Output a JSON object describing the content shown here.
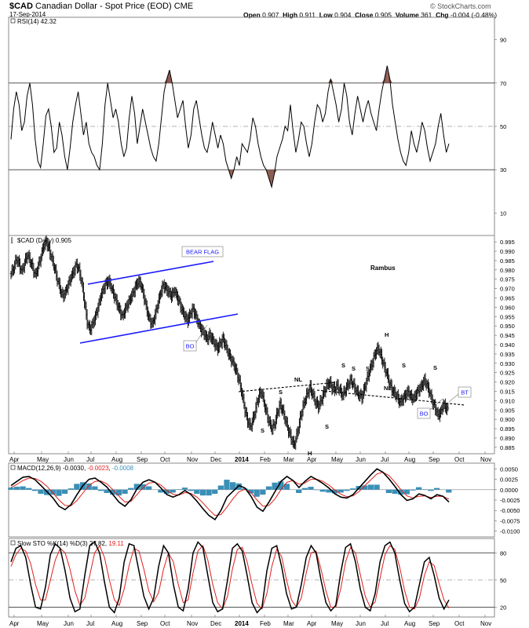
{
  "header": {
    "symbol": "$CAD",
    "name": "Canadian Dollar - Spot Price (EOD)",
    "exchange": "CME",
    "date": "17-Sep-2014",
    "open_label": "Open",
    "open": "0.907",
    "high_label": "High",
    "high": "0.911",
    "low_label": "Low",
    "low": "0.904",
    "close_label": "Close",
    "close": "0.905",
    "volume_label": "Volume",
    "volume": "361",
    "chg_label": "Chg",
    "chg": "-0.004 (-0.48%)",
    "brand": "© StockCharts.com"
  },
  "colors": {
    "price_bars": "#000000",
    "trendline": "#1a1aff",
    "neckline": "#000000",
    "macd_hist": "#3a8fb7",
    "signal_line": "#e0201b",
    "rsi_fill": "#8b5a50",
    "annotation_text": "#1a1aff"
  },
  "chart_data": [
    {
      "id": "rsi",
      "type": "line",
      "legend": "RSI(14) 42.32",
      "y_ticks": [
        10,
        30,
        50,
        70,
        90
      ],
      "ylim": [
        0,
        100
      ],
      "reference_lines": [
        30,
        50,
        70
      ],
      "series": [
        {
          "values": [
            44,
            58,
            66,
            60,
            48,
            52,
            64,
            70,
            60,
            44,
            34,
            31,
            42,
            55,
            58,
            50,
            38,
            40,
            52,
            46,
            36,
            30,
            40,
            52,
            60,
            66,
            56,
            46,
            52,
            42,
            38,
            36,
            32,
            30,
            42,
            60,
            70,
            62,
            54,
            58,
            52,
            42,
            36,
            40,
            54,
            64,
            56,
            42,
            50,
            58,
            52,
            46,
            40,
            36,
            34,
            42,
            54,
            66,
            72,
            76,
            70,
            62,
            54,
            58,
            62,
            50,
            40,
            46,
            58,
            62,
            54,
            46,
            40,
            38,
            44,
            52,
            46,
            40,
            46,
            42,
            34,
            30,
            26,
            30,
            36,
            32,
            42,
            40,
            38,
            44,
            54,
            50,
            42,
            36,
            32,
            30,
            26,
            22,
            28,
            36,
            40,
            44,
            50,
            48,
            60,
            48,
            38,
            44,
            52,
            50,
            42,
            36,
            42,
            52,
            60,
            58,
            52,
            56,
            66,
            72,
            66,
            60,
            52,
            58,
            70,
            64,
            52,
            46,
            56,
            64,
            58,
            52,
            58,
            62,
            56,
            52,
            48,
            58,
            66,
            72,
            78,
            72,
            60,
            52,
            44,
            38,
            34,
            32,
            38,
            48,
            42,
            38,
            44,
            52,
            48,
            40,
            34,
            38,
            42,
            50,
            56,
            46,
            38,
            42
          ]
        }
      ]
    },
    {
      "id": "price",
      "type": "line",
      "legend": "$CAD (Daily) 0.905",
      "y_ticks": [
        0.885,
        0.89,
        0.895,
        0.9,
        0.905,
        0.91,
        0.915,
        0.92,
        0.925,
        0.93,
        0.935,
        0.94,
        0.945,
        0.95,
        0.955,
        0.96,
        0.965,
        0.97,
        0.975,
        0.98,
        0.985,
        0.99,
        0.995
      ],
      "ylim": [
        0.882,
        0.998
      ],
      "series": [
        {
          "values": [
            0.978,
            0.981,
            0.986,
            0.983,
            0.979,
            0.984,
            0.988,
            0.985,
            0.981,
            0.977,
            0.982,
            0.987,
            0.993,
            0.995,
            0.991,
            0.986,
            0.981,
            0.975,
            0.97,
            0.966,
            0.968,
            0.972,
            0.976,
            0.979,
            0.983,
            0.98,
            0.973,
            0.963,
            0.952,
            0.948,
            0.951,
            0.955,
            0.96,
            0.966,
            0.97,
            0.973,
            0.974,
            0.97,
            0.966,
            0.962,
            0.958,
            0.955,
            0.959,
            0.962,
            0.965,
            0.968,
            0.972,
            0.974,
            0.971,
            0.965,
            0.958,
            0.953,
            0.951,
            0.956,
            0.962,
            0.968,
            0.972,
            0.97,
            0.968,
            0.966,
            0.969,
            0.966,
            0.962,
            0.958,
            0.955,
            0.953,
            0.957,
            0.959,
            0.955,
            0.951,
            0.948,
            0.946,
            0.943,
            0.945,
            0.943,
            0.94,
            0.938,
            0.941,
            0.943,
            0.939,
            0.935,
            0.932,
            0.929,
            0.925,
            0.92,
            0.913,
            0.905,
            0.899,
            0.896,
            0.9,
            0.906,
            0.912,
            0.915,
            0.909,
            0.903,
            0.898,
            0.895,
            0.898,
            0.904,
            0.908,
            0.904,
            0.899,
            0.894,
            0.89,
            0.886,
            0.891,
            0.898,
            0.905,
            0.91,
            0.914,
            0.917,
            0.913,
            0.909,
            0.907,
            0.91,
            0.914,
            0.918,
            0.92,
            0.917,
            0.916,
            0.918,
            0.915,
            0.913,
            0.916,
            0.919,
            0.921,
            0.918,
            0.915,
            0.913,
            0.912,
            0.917,
            0.922,
            0.927,
            0.931,
            0.936,
            0.938,
            0.934,
            0.929,
            0.925,
            0.92,
            0.916,
            0.914,
            0.912,
            0.909,
            0.911,
            0.913,
            0.915,
            0.912,
            0.911,
            0.914,
            0.916,
            0.918,
            0.921,
            0.918,
            0.914,
            0.909,
            0.906,
            0.902,
            0.904,
            0.908,
            0.906,
            0.905
          ]
        }
      ],
      "annotations": [
        {
          "text": "BEAR FLAG",
          "boxed": true
        },
        {
          "text": "Rambus"
        },
        {
          "text": "BO",
          "boxed": true
        },
        {
          "text": "BO",
          "boxed": true
        },
        {
          "text": "BT",
          "boxed": true
        },
        {
          "text": "NL"
        },
        {
          "text": "NL"
        },
        {
          "text": "S"
        },
        {
          "text": "S"
        },
        {
          "text": "H"
        },
        {
          "text": "S"
        },
        {
          "text": "S"
        },
        {
          "text": "S"
        },
        {
          "text": "S"
        },
        {
          "text": "H"
        },
        {
          "text": "S"
        },
        {
          "text": "S"
        }
      ]
    },
    {
      "id": "macd",
      "type": "line",
      "legend": {
        "name": "MACD(12,26,9)",
        "macd": "-0.0030",
        "signal": "-0.0023",
        "hist": "-0.0008"
      },
      "y_ticks": [
        0.005,
        0.0025,
        0.0,
        -0.0025,
        -0.005,
        -0.0075,
        -0.01
      ],
      "ylim": [
        -0.0112,
        0.0062
      ],
      "series": [
        {
          "name": "MACD",
          "values": [
            0.001,
            0.002,
            0.003,
            0.0032,
            0.0024,
            0.001,
            -0.0005,
            -0.002,
            -0.004,
            -0.0048,
            -0.0036,
            -0.0012,
            0.001,
            0.0025,
            0.0028,
            0.0018,
            0.0006,
            -0.0012,
            -0.003,
            -0.004,
            -0.0024,
            0.0002,
            0.0018,
            0.0024,
            0.0018,
            0.0004,
            -0.0012,
            -0.0018,
            -0.0012,
            -0.0002,
            -0.0012,
            -0.0028,
            -0.0046,
            -0.0062,
            -0.0072,
            -0.005,
            -0.0018,
            -0.0004,
            0.001,
            0.0004,
            -0.0016,
            -0.0042,
            -0.0052,
            -0.003,
            -0.0005,
            0.002,
            0.0032,
            0.0022,
            0.0005,
            0.002,
            0.0032,
            0.0024,
            0.0015,
            0.0004,
            -0.001,
            -0.0018,
            -0.002,
            -0.0012,
            0.0004,
            0.002,
            0.0036,
            0.005,
            0.0042,
            0.0026,
            0.0008,
            -0.0012,
            -0.0026,
            -0.0022,
            -0.001,
            -0.0014,
            -0.0022,
            -0.0012,
            -0.0016,
            -0.003
          ]
        },
        {
          "name": "Signal",
          "values": [
            0.0005,
            0.0013,
            0.0022,
            0.0028,
            0.0027,
            0.002,
            0.0008,
            -0.0008,
            -0.0025,
            -0.0038,
            -0.0039,
            -0.0026,
            -0.0008,
            0.001,
            0.002,
            0.0021,
            0.0014,
            0.0,
            -0.0016,
            -0.003,
            -0.0028,
            -0.0012,
            0.0005,
            0.0016,
            0.0018,
            0.0011,
            -0.0002,
            -0.0011,
            -0.0013,
            -0.0007,
            -0.0009,
            -0.0018,
            -0.0032,
            -0.0048,
            -0.0062,
            -0.006,
            -0.0042,
            -0.0022,
            -0.0005,
            0.0001,
            -0.0007,
            -0.0025,
            -0.004,
            -0.0038,
            -0.0022,
            0.0,
            0.0018,
            0.0022,
            0.0013,
            0.0016,
            0.0025,
            0.0025,
            0.002,
            0.0011,
            -0.0001,
            -0.0011,
            -0.0017,
            -0.0015,
            -0.0005,
            0.001,
            0.0024,
            0.0038,
            0.0042,
            0.0034,
            0.0018,
            0.0,
            -0.0015,
            -0.002,
            -0.0016,
            -0.0015,
            -0.0019,
            -0.0016,
            -0.0016,
            -0.0023
          ]
        }
      ]
    },
    {
      "id": "stoch",
      "type": "line",
      "legend": {
        "name": "Slow STO %K(14) %D(3)",
        "k": "27.82",
        "d": "19.11"
      },
      "y_ticks": [
        20,
        50,
        80
      ],
      "ylim": [
        10,
        95
      ],
      "reference_lines": [
        20,
        50,
        80
      ],
      "series": [
        {
          "name": "%K",
          "values": [
            70,
            85,
            88,
            75,
            45,
            20,
            18,
            42,
            78,
            90,
            85,
            60,
            30,
            15,
            18,
            55,
            88,
            92,
            80,
            48,
            20,
            14,
            30,
            70,
            90,
            88,
            60,
            32,
            18,
            30,
            65,
            88,
            80,
            45,
            20,
            16,
            40,
            80,
            92,
            86,
            55,
            25,
            15,
            18,
            50,
            85,
            90,
            82,
            55,
            25,
            14,
            20,
            60,
            85,
            88,
            65,
            35,
            18,
            20,
            45,
            75,
            88,
            80,
            50,
            25,
            16,
            22,
            58,
            86,
            90,
            70,
            40,
            20,
            16,
            35,
            70,
            88,
            92,
            80,
            50,
            24,
            15,
            20,
            45,
            70,
            75,
            55,
            30,
            18,
            28
          ]
        },
        {
          "name": "%D",
          "values": [
            65,
            78,
            85,
            82,
            68,
            45,
            28,
            28,
            50,
            72,
            85,
            80,
            62,
            38,
            22,
            30,
            55,
            80,
            88,
            75,
            50,
            28,
            22,
            40,
            66,
            85,
            82,
            62,
            38,
            26,
            36,
            62,
            80,
            70,
            45,
            25,
            28,
            58,
            82,
            88,
            72,
            45,
            25,
            18,
            32,
            62,
            84,
            86,
            70,
            45,
            24,
            18,
            35,
            65,
            84,
            76,
            50,
            28,
            20,
            30,
            58,
            80,
            82,
            62,
            38,
            20,
            20,
            40,
            70,
            86,
            80,
            56,
            32,
            20,
            26,
            52,
            78,
            88,
            84,
            64,
            38,
            20,
            18,
            30,
            55,
            70,
            66,
            46,
            28,
            19
          ]
        }
      ]
    }
  ],
  "x_axis": {
    "labels": [
      "Apr",
      "May",
      "Jun",
      "Jul",
      "Aug",
      "Sep",
      "Oct",
      "Nov",
      "Dec",
      "2014",
      "Feb",
      "Mar",
      "Apr",
      "May",
      "Jun",
      "Jul",
      "Aug",
      "Sep",
      "Oct",
      "Nov"
    ]
  }
}
